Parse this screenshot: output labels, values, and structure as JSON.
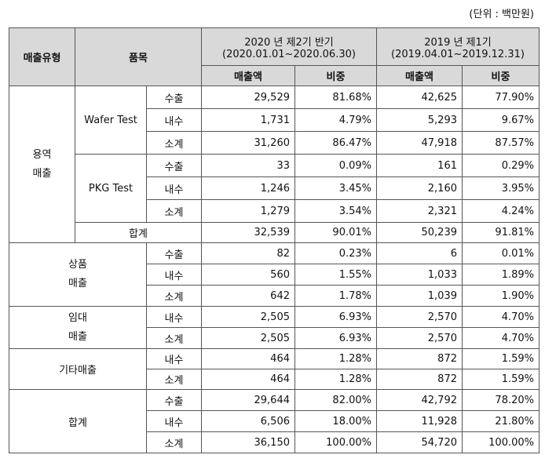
{
  "unit_label": "(단위 : 백만원)",
  "headers": {
    "type": "매출유형",
    "product": "품목",
    "period1_line1": "2020 년 제2기 반기",
    "period1_line2": "(2020.01.01~2020.06.30)",
    "period2_line1": "2019 년 제1기",
    "period2_line2": "(2019.04.01~2019.12.31)",
    "sales": "매출액",
    "ratio": "비중"
  },
  "groups": {
    "service_line1": "용역",
    "service_line2": "매출",
    "goods_line1": "상품",
    "goods_line2": "매출",
    "rental_line1": "임대",
    "rental_line2": "매출",
    "other": "기타매출",
    "total": "합계"
  },
  "products": {
    "wafer": "Wafer Test",
    "pkg": "PKG Test",
    "service_total": "합계"
  },
  "rows": [
    {
      "sub": "수출",
      "s1": "29,529",
      "r1": "81.68%",
      "s2": "42,625",
      "r2": "77.90%"
    },
    {
      "sub": "내수",
      "s1": "1,731",
      "r1": "4.79%",
      "s2": "5,293",
      "r2": "9.67%"
    },
    {
      "sub": "소계",
      "s1": "31,260",
      "r1": "86.47%",
      "s2": "47,918",
      "r2": "87.57%"
    },
    {
      "sub": "수출",
      "s1": "33",
      "r1": "0.09%",
      "s2": "161",
      "r2": "0.29%"
    },
    {
      "sub": "내수",
      "s1": "1,246",
      "r1": "3.45%",
      "s2": "2,160",
      "r2": "3.95%"
    },
    {
      "sub": "소계",
      "s1": "1,279",
      "r1": "3.54%",
      "s2": "2,321",
      "r2": "4.24%"
    },
    {
      "sub": "",
      "s1": "32,539",
      "r1": "90.01%",
      "s2": "50,239",
      "r2": "91.81%"
    },
    {
      "sub": "수출",
      "s1": "82",
      "r1": "0.23%",
      "s2": "6",
      "r2": "0.01%"
    },
    {
      "sub": "내수",
      "s1": "560",
      "r1": "1.55%",
      "s2": "1,033",
      "r2": "1.89%"
    },
    {
      "sub": "소계",
      "s1": "642",
      "r1": "1.78%",
      "s2": "1,039",
      "r2": "1.90%"
    },
    {
      "sub": "내수",
      "s1": "2,505",
      "r1": "6.93%",
      "s2": "2,570",
      "r2": "4.70%"
    },
    {
      "sub": "소계",
      "s1": "2,505",
      "r1": "6.93%",
      "s2": "2,570",
      "r2": "4.70%"
    },
    {
      "sub": "내수",
      "s1": "464",
      "r1": "1.28%",
      "s2": "872",
      "r2": "1.59%"
    },
    {
      "sub": "소계",
      "s1": "464",
      "r1": "1.28%",
      "s2": "872",
      "r2": "1.59%"
    },
    {
      "sub": "수출",
      "s1": "29,644",
      "r1": "82.00%",
      "s2": "42,792",
      "r2": "78.20%"
    },
    {
      "sub": "내수",
      "s1": "6,506",
      "r1": "18.00%",
      "s2": "11,928",
      "r2": "21.80%"
    },
    {
      "sub": "소계",
      "s1": "36,150",
      "r1": "100.00%",
      "s2": "54,720",
      "r2": "100.00%"
    }
  ]
}
